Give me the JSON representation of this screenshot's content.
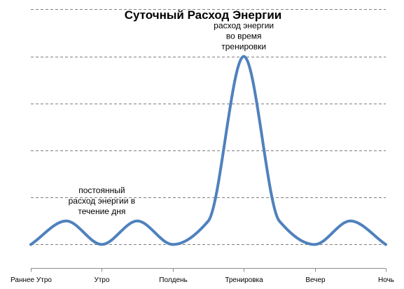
{
  "chart_data": {
    "type": "line",
    "title": "Суточный Расход Энергии",
    "xlabel": "",
    "ylabel": "",
    "categories": [
      "Раннее Утро",
      "Утро",
      "Полдень",
      "Тренировка",
      "Вечер",
      "Ночь"
    ],
    "x": [
      0,
      0.5,
      1,
      1.5,
      2,
      2.5,
      3,
      3.5,
      4,
      4.5,
      5
    ],
    "series": [
      {
        "values": [
          0,
          0.5,
          0,
          0.5,
          0,
          0.5,
          4,
          0.5,
          0,
          0.5,
          0
        ],
        "color": "#4f81bd"
      }
    ],
    "ylim": [
      -0.5,
      4.5
    ],
    "yticks": [
      0,
      1,
      2,
      3,
      4,
      5
    ],
    "ytick_labels_shown": false,
    "grid": true,
    "smooth": true,
    "legend": "none",
    "annotations": [
      {
        "lines": [
          "постоянный",
          "расход энергии в",
          "течение дня"
        ],
        "x": 1,
        "y": 0.5
      },
      {
        "lines": [
          "расход энергии",
          "во время",
          "тренировки"
        ],
        "x": 3,
        "y": 4
      }
    ]
  }
}
